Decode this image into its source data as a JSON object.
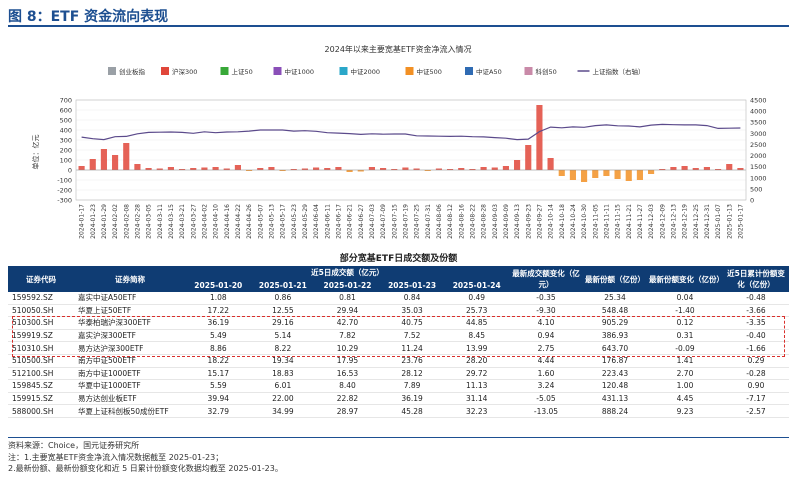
{
  "figure": {
    "label": "图 8：ETF 资金流向表现"
  },
  "chart_data": {
    "type": "bar",
    "title": "2024年以来主要宽基ETF资金净流入情况",
    "ylabel": "单位：亿元",
    "ylim": [
      -300,
      700
    ],
    "y2lim": [
      0,
      4500
    ],
    "yticks": [
      -300,
      -200,
      -100,
      0,
      100,
      200,
      300,
      400,
      500,
      600,
      700
    ],
    "y2ticks": [
      0,
      500,
      1000,
      1500,
      2000,
      2500,
      3000,
      3500,
      4000,
      4500
    ],
    "legend_position": "top",
    "legend": [
      {
        "name": "创业板指",
        "color": "#9aa0a6"
      },
      {
        "name": "沪深300",
        "color": "#e0463a"
      },
      {
        "name": "上证50",
        "color": "#38a838"
      },
      {
        "name": "中证1000",
        "color": "#8a4fb8"
      },
      {
        "name": "中证2000",
        "color": "#2aa7c9"
      },
      {
        "name": "中证500",
        "color": "#f29024"
      },
      {
        "name": "中证A50",
        "color": "#2f6bb3"
      },
      {
        "name": "科创50",
        "color": "#c98aa8"
      },
      {
        "name": "上证指数（右轴）",
        "color": "#5b4a8b"
      }
    ],
    "x_dates": [
      "2024-01-17",
      "2024-01-23",
      "2024-01-29",
      "2024-02-02",
      "2024-02-08",
      "2024-02-28",
      "2024-03-05",
      "2024-03-11",
      "2024-03-15",
      "2024-03-21",
      "2024-03-27",
      "2024-04-02",
      "2024-04-10",
      "2024-04-16",
      "2024-04-22",
      "2024-04-26",
      "2024-05-07",
      "2024-05-13",
      "2024-05-17",
      "2024-05-23",
      "2024-05-29",
      "2024-06-04",
      "2024-06-11",
      "2024-06-17",
      "2024-06-21",
      "2024-06-27",
      "2024-07-03",
      "2024-07-09",
      "2024-07-15",
      "2024-07-19",
      "2024-07-25",
      "2024-07-31",
      "2024-08-06",
      "2024-08-12",
      "2024-08-16",
      "2024-08-22",
      "2024-08-28",
      "2024-09-03",
      "2024-09-09",
      "2024-09-13",
      "2024-09-23",
      "2024-09-27",
      "2024-10-14",
      "2024-10-18",
      "2024-10-24",
      "2024-10-30",
      "2024-11-05",
      "2024-11-11",
      "2024-11-15",
      "2024-11-21",
      "2024-11-27",
      "2024-12-03",
      "2024-12-09",
      "2024-12-13",
      "2024-12-19",
      "2024-12-25",
      "2024-12-31",
      "2025-01-07",
      "2025-01-13",
      "2025-01-17"
    ],
    "net_inflow_total": [
      40,
      110,
      210,
      150,
      270,
      60,
      20,
      15,
      30,
      10,
      20,
      25,
      30,
      15,
      50,
      -10,
      20,
      30,
      -10,
      10,
      15,
      25,
      20,
      30,
      -20,
      -15,
      30,
      20,
      10,
      25,
      15,
      -10,
      15,
      10,
      20,
      10,
      30,
      25,
      40,
      100,
      250,
      650,
      120,
      -60,
      -100,
      -120,
      -80,
      -60,
      -90,
      -110,
      -100,
      -40,
      10,
      30,
      40,
      20,
      30,
      10,
      60,
      20
    ],
    "sh_index": [
      2830,
      2760,
      2720,
      2850,
      2860,
      2980,
      3040,
      3050,
      3060,
      3040,
      3000,
      3070,
      3030,
      3060,
      3070,
      3100,
      3150,
      3150,
      3150,
      3100,
      3120,
      3090,
      3030,
      3010,
      2990,
      2950,
      2980,
      2960,
      2970,
      2970,
      2890,
      2880,
      2870,
      2860,
      2870,
      2850,
      2840,
      2810,
      2780,
      2720,
      2740,
      3080,
      3280,
      3250,
      3290,
      3270,
      3350,
      3380,
      3340,
      3330,
      3290,
      3370,
      3400,
      3390,
      3380,
      3380,
      3350,
      3220,
      3230,
      3240
    ]
  },
  "table": {
    "title": "部分宽基ETF日成交额及份额",
    "headers": {
      "code": "证券代码",
      "name": "证券简称",
      "group": "近5日成交额（亿元）",
      "dates": [
        "2025-01-20",
        "2025-01-21",
        "2025-01-22",
        "2025-01-23",
        "2025-01-24"
      ],
      "chg": "最新成交额变化（亿元）",
      "shares": "最新份额（亿份）",
      "share_chg": "最新份额变化（亿份）",
      "cum": "近5日累计份额变化（亿份）"
    },
    "rows": [
      {
        "code": "159592.SZ",
        "name": "嘉实中证A50ETF",
        "v": [
          "1.08",
          "0.86",
          "0.81",
          "0.84",
          "0.49"
        ],
        "chg": "-0.35",
        "shares": "25.34",
        "share_chg": "0.04",
        "cum": "-0.48"
      },
      {
        "code": "510050.SH",
        "name": "华夏上证50ETF",
        "v": [
          "17.22",
          "12.55",
          "29.94",
          "35.03",
          "25.73"
        ],
        "chg": "-9.30",
        "shares": "548.48",
        "share_chg": "-1.40",
        "cum": "-3.66"
      },
      {
        "code": "510300.SH",
        "name": "华泰柏瑞沪深300ETF",
        "v": [
          "36.19",
          "29.16",
          "42.70",
          "40.75",
          "44.85"
        ],
        "chg": "4.10",
        "shares": "905.29",
        "share_chg": "0.12",
        "cum": "-3.35"
      },
      {
        "code": "159919.SZ",
        "name": "嘉实沪深300ETF",
        "v": [
          "5.49",
          "5.14",
          "7.82",
          "7.52",
          "8.45"
        ],
        "chg": "0.94",
        "shares": "386.93",
        "share_chg": "0.31",
        "cum": "-0.40"
      },
      {
        "code": "510310.SH",
        "name": "易方达沪深300ETF",
        "v": [
          "8.86",
          "8.22",
          "10.29",
          "11.24",
          "13.99"
        ],
        "chg": "2.75",
        "shares": "643.70",
        "share_chg": "-0.09",
        "cum": "-1.66"
      },
      {
        "code": "510500.SH",
        "name": "南方中证500ETF",
        "v": [
          "18.22",
          "19.34",
          "17.95",
          "23.76",
          "28.20"
        ],
        "chg": "4.44",
        "shares": "176.87",
        "share_chg": "1.41",
        "cum": "0.29"
      },
      {
        "code": "512100.SH",
        "name": "南方中证1000ETF",
        "v": [
          "15.17",
          "18.83",
          "16.53",
          "28.12",
          "29.72"
        ],
        "chg": "1.60",
        "shares": "223.43",
        "share_chg": "2.70",
        "cum": "-0.28"
      },
      {
        "code": "159845.SZ",
        "name": "华夏中证1000ETF",
        "v": [
          "5.59",
          "6.01",
          "8.40",
          "7.89",
          "11.13"
        ],
        "chg": "3.24",
        "shares": "120.48",
        "share_chg": "1.00",
        "cum": "0.90"
      },
      {
        "code": "159915.SZ",
        "name": "易方达创业板ETF",
        "v": [
          "39.94",
          "22.00",
          "22.82",
          "36.19",
          "31.14"
        ],
        "chg": "-5.05",
        "shares": "431.13",
        "share_chg": "4.45",
        "cum": "-7.17"
      },
      {
        "code": "588000.SH",
        "name": "华夏上证科创板50成份ETF",
        "v": [
          "32.79",
          "34.99",
          "28.97",
          "45.28",
          "32.23"
        ],
        "chg": "-13.05",
        "shares": "888.24",
        "share_chg": "9.23",
        "cum": "-2.57"
      }
    ]
  },
  "source": "资料来源：Choice，国元证券研究所",
  "notes": [
    "注：1.主要宽基ETF资金净流入情况数据截至 2025-01-23；",
    "2.最新份额、最新份额变化和近 5 日累计份额变化数据均截至 2025-01-23。"
  ],
  "colors": {
    "accent": "#1d4f91",
    "header_bg": "#0f3c73",
    "highlight": "#d9302c"
  }
}
